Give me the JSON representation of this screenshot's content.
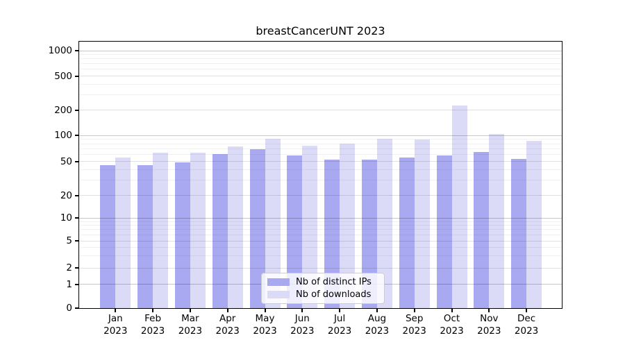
{
  "title": "breastCancerUNT 2023",
  "chart_data": {
    "type": "bar",
    "title": "breastCancerUNT 2023",
    "y_scale": "symlog",
    "ylim": [
      0,
      1000
    ],
    "y_ticks": [
      0,
      1,
      2,
      5,
      10,
      20,
      50,
      100,
      200,
      500,
      1000
    ],
    "y_tick_labels": [
      "0",
      "1",
      "2",
      "5",
      "10",
      "20",
      "50",
      "100",
      "200",
      "500",
      "1000"
    ],
    "categories": [
      "Jan",
      "Feb",
      "Mar",
      "Apr",
      "May",
      "Jun",
      "Jul",
      "Aug",
      "Sep",
      "Oct",
      "Nov",
      "Dec"
    ],
    "x_year": "2023",
    "series": [
      {
        "name": "Nb of distinct IPs",
        "color": "#a9a9f2",
        "values": [
          45,
          45,
          49,
          61,
          69,
          59,
          52,
          52,
          55,
          59,
          64,
          53
        ]
      },
      {
        "name": "Nb of downloads",
        "color": "#dbdbf8",
        "values": [
          55,
          63,
          63,
          74,
          91,
          76,
          80,
          91,
          90,
          225,
          103,
          86
        ]
      }
    ],
    "grid": true,
    "legend_position": "bottom-center"
  },
  "colors": {
    "distinct_ips_bar": "#a9a9f2",
    "downloads_bar": "#dbdbf8",
    "grid_major": "#c7c7c7",
    "grid_secondary": "#e0e0e0",
    "grid_minor": "#f0f0f0",
    "axis": "#000000",
    "legend_border": "#cccccc"
  }
}
